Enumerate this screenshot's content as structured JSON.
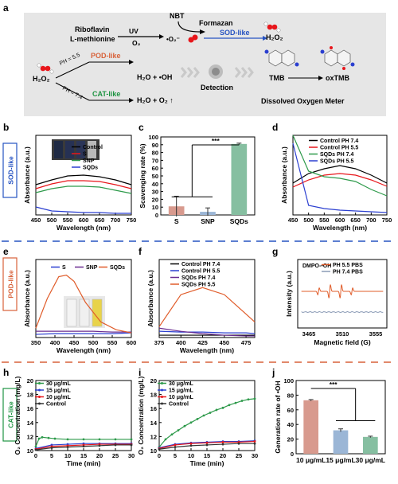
{
  "figure": {
    "panel_labels": [
      "a",
      "b",
      "c",
      "d",
      "e",
      "f",
      "g",
      "h",
      "i",
      "j"
    ],
    "side_labels": {
      "sod": "SOD-like",
      "pod": "POD-like",
      "cat": "CAT-like"
    },
    "colors": {
      "black": "#000000",
      "red": "#e8161b",
      "green": "#2e9a4b",
      "blue": "#2b3fd0",
      "purple": "#6a2c91",
      "orange": "#e05c2a",
      "pink": "#d96b8a",
      "sodBadge": "#2653c2",
      "podBadge": "#d8623a",
      "catBadge": "#1f9443",
      "scheme_bg": "#e6e6e6"
    }
  },
  "scheme": {
    "riboflavin": "Riboflavin",
    "methionine": "L-methionine",
    "uv": "UV",
    "o2": "O₂",
    "nbt": "NBT",
    "formazan": "Formazan",
    "superoxide": "•O₂⁻",
    "sod_like": "SOD-like",
    "h2o2_top": "H₂O₂",
    "h2o2_left": "H₂O₂",
    "ph55": "PH = 5.5",
    "ph74": "PH = 7.4",
    "pod_like": "POD-like",
    "cat_like": "CAT-like",
    "pod_product": "H₂O + •OH",
    "cat_product": "H₂O + O₂ ↑",
    "detection": "Detection",
    "tmb": "TMB",
    "oxtmb": "oxTMB",
    "dissolved": "Dissolved Oxygen Meter"
  },
  "chart_data": [
    {
      "panel": "b",
      "type": "line",
      "xlabel": "Wavelength (nm)",
      "ylabel": "Absorbance (a.u.)",
      "xlim": [
        450,
        750
      ],
      "ylim": [
        0,
        1
      ],
      "xticks": [
        450,
        500,
        550,
        600,
        650,
        700,
        750
      ],
      "yticks": [],
      "series": [
        {
          "name": "Control",
          "color": "#000000",
          "x": [
            450,
            500,
            550,
            600,
            650,
            700,
            750
          ],
          "y": [
            0.38,
            0.44,
            0.49,
            0.5,
            0.48,
            0.44,
            0.38
          ]
        },
        {
          "name": "S",
          "color": "#e8161b",
          "x": [
            450,
            500,
            550,
            600,
            650,
            700,
            750
          ],
          "y": [
            0.33,
            0.39,
            0.43,
            0.43,
            0.42,
            0.38,
            0.33
          ]
        },
        {
          "name": "SNP",
          "color": "#2e9a4b",
          "x": [
            450,
            500,
            550,
            600,
            650,
            700,
            750
          ],
          "y": [
            0.28,
            0.33,
            0.36,
            0.36,
            0.35,
            0.31,
            0.27
          ]
        },
        {
          "name": "SQDs",
          "color": "#2b3fd0",
          "x": [
            450,
            500,
            550,
            600,
            650,
            700,
            750
          ],
          "y": [
            0.1,
            0.05,
            0.04,
            0.03,
            0.03,
            0.02,
            0.02
          ]
        }
      ]
    },
    {
      "panel": "c",
      "type": "bar",
      "xlabel": "",
      "ylabel": "Scavenging rate (%)",
      "ylim": [
        0,
        100
      ],
      "yticks": [
        0,
        10,
        20,
        30,
        40,
        50,
        60,
        70,
        80,
        90,
        100
      ],
      "categories": [
        "S",
        "SNP",
        "SQDs"
      ],
      "values": [
        11,
        4,
        91
      ],
      "errors": [
        13,
        5,
        1
      ],
      "colors": [
        "#d89a8e",
        "#9bb6d6",
        "#86bfa1"
      ],
      "annotation": "***"
    },
    {
      "panel": "d",
      "type": "line",
      "xlabel": "Wavelength (nm)",
      "ylabel": "Absorbance (a.u.)",
      "xlim": [
        450,
        750
      ],
      "ylim": [
        0,
        1
      ],
      "xticks": [
        450,
        500,
        550,
        600,
        650,
        700,
        750
      ],
      "yticks": [],
      "series": [
        {
          "name": "Control PH 7.4",
          "color": "#000000",
          "x": [
            450,
            500,
            550,
            600,
            650,
            700,
            750
          ],
          "y": [
            0.4,
            0.52,
            0.58,
            0.62,
            0.58,
            0.5,
            0.4
          ]
        },
        {
          "name": "Control PH 5.5",
          "color": "#e8161b",
          "x": [
            450,
            500,
            550,
            600,
            650,
            700,
            750
          ],
          "y": [
            0.35,
            0.44,
            0.5,
            0.52,
            0.5,
            0.44,
            0.36
          ]
        },
        {
          "name": "SQDs PH 7.4",
          "color": "#2e9a4b",
          "x": [
            450,
            500,
            550,
            600,
            650,
            700,
            750
          ],
          "y": [
            1.0,
            0.55,
            0.48,
            0.46,
            0.42,
            0.32,
            0.24
          ]
        },
        {
          "name": "SQDs PH 5.5",
          "color": "#2b3fd0",
          "x": [
            450,
            500,
            550,
            600,
            650,
            700,
            750
          ],
          "y": [
            0.9,
            0.12,
            0.08,
            0.06,
            0.05,
            0.04,
            0.03
          ]
        }
      ]
    },
    {
      "panel": "e",
      "type": "line",
      "xlabel": "Wavelength (nm)",
      "ylabel": "Absorbance (a.u.)",
      "xlim": [
        350,
        600
      ],
      "ylim": [
        0,
        1
      ],
      "xticks": [
        350,
        400,
        450,
        500,
        550,
        600
      ],
      "yticks": [],
      "series": [
        {
          "name": "S",
          "color": "#2b3fd0",
          "x": [
            350,
            400,
            450,
            500,
            550,
            600
          ],
          "y": [
            0.04,
            0.05,
            0.05,
            0.05,
            0.05,
            0.06
          ]
        },
        {
          "name": "SNP",
          "color": "#6a2c91",
          "x": [
            350,
            400,
            450,
            500,
            550,
            600
          ],
          "y": [
            0.08,
            0.08,
            0.08,
            0.08,
            0.07,
            0.07
          ]
        },
        {
          "name": "SQDs",
          "color": "#e05c2a",
          "x": [
            350,
            380,
            410,
            430,
            450,
            480,
            520,
            560,
            600
          ],
          "y": [
            0.12,
            0.5,
            0.78,
            0.8,
            0.72,
            0.45,
            0.2,
            0.1,
            0.06
          ]
        }
      ]
    },
    {
      "panel": "f",
      "type": "line",
      "xlabel": "Wavelength (nm)",
      "ylabel": "Absorbance (a.u.)",
      "xlim": [
        375,
        485
      ],
      "ylim": [
        0,
        1
      ],
      "xticks": [
        375,
        400,
        425,
        450,
        475
      ],
      "yticks": [],
      "series": [
        {
          "name": "Control PH 7.4",
          "color": "#000000",
          "x": [
            375,
            400,
            425,
            450,
            475,
            485
          ],
          "y": [
            0.03,
            0.03,
            0.03,
            0.03,
            0.03,
            0.03
          ]
        },
        {
          "name": "Control PH 5.5",
          "color": "#2b3fd0",
          "x": [
            375,
            400,
            425,
            450,
            475,
            485
          ],
          "y": [
            0.08,
            0.07,
            0.07,
            0.06,
            0.06,
            0.05
          ]
        },
        {
          "name": "SQDs PH 7.4",
          "color": "#6a2c91",
          "x": [
            375,
            400,
            425,
            450,
            475,
            485
          ],
          "y": [
            0.12,
            0.08,
            0.05,
            0.03,
            0.02,
            0.02
          ]
        },
        {
          "name": "SQDs PH 5.5",
          "color": "#e05c2a",
          "x": [
            375,
            400,
            425,
            450,
            475,
            485
          ],
          "y": [
            0.14,
            0.55,
            0.64,
            0.55,
            0.3,
            0.2
          ]
        }
      ]
    },
    {
      "panel": "g",
      "type": "line",
      "xlabel": "Magnetic field (G)",
      "ylabel": "Intensity (a.u.)",
      "xticks": [
        3465,
        3510,
        3555
      ],
      "annotation": "DMPO-•OH",
      "series": [
        {
          "name": "PH 5.5 PBS",
          "color": "#e05c2a"
        },
        {
          "name": "PH 7.4 PBS",
          "color": "#8a9ab5"
        }
      ]
    },
    {
      "panel": "h",
      "type": "line",
      "xlabel": "Time (min)",
      "ylabel": "O₂ Concentration (mg/L)",
      "xlim": [
        0,
        30
      ],
      "ylim": [
        10,
        20
      ],
      "xticks": [
        0,
        5,
        10,
        15,
        20,
        25,
        30
      ],
      "yticks": [
        10,
        12,
        14,
        16,
        18,
        20
      ],
      "series": [
        {
          "name": "30 μg/mL",
          "color": "#2e9a4b",
          "x": [
            0,
            1,
            2,
            4,
            6,
            10,
            15,
            20,
            25,
            30
          ],
          "y": [
            10.6,
            11.7,
            11.9,
            11.8,
            11.7,
            11.6,
            11.6,
            11.6,
            11.6,
            11.6
          ]
        },
        {
          "name": "15 μg/mL",
          "color": "#2b3fd0",
          "x": [
            0,
            5,
            10,
            15,
            20,
            25,
            30
          ],
          "y": [
            10.3,
            10.8,
            10.9,
            11.0,
            11.0,
            11.0,
            11.0
          ]
        },
        {
          "name": "10 μg/mL",
          "color": "#e8161b",
          "x": [
            0,
            5,
            10,
            15,
            20,
            25,
            30
          ],
          "y": [
            10.2,
            10.6,
            10.7,
            10.8,
            10.9,
            10.9,
            10.9
          ]
        },
        {
          "name": "Control",
          "color": "#333333",
          "x": [
            0,
            5,
            10,
            15,
            20,
            25,
            30
          ],
          "y": [
            10.1,
            10.4,
            10.5,
            10.6,
            10.7,
            10.8,
            10.8
          ]
        }
      ]
    },
    {
      "panel": "i",
      "type": "line",
      "xlabel": "Time (min)",
      "ylabel": "O₂ Concentration (mg/L)",
      "xlim": [
        0,
        30
      ],
      "ylim": [
        10,
        20
      ],
      "xticks": [
        0,
        5,
        10,
        15,
        20,
        25,
        30
      ],
      "yticks": [
        10,
        12,
        14,
        16,
        18,
        20
      ],
      "series": [
        {
          "name": "30 μg/mL",
          "color": "#2e9a4b",
          "x": [
            0,
            2,
            4,
            6,
            8,
            10,
            12,
            14,
            16,
            18,
            20,
            22,
            24,
            26,
            28,
            30
          ],
          "y": [
            10.5,
            11.6,
            12.3,
            12.9,
            13.5,
            14.0,
            14.5,
            15.0,
            15.4,
            15.8,
            16.1,
            16.5,
            16.8,
            17.1,
            17.3,
            17.4
          ]
        },
        {
          "name": "15 μg/mL",
          "color": "#2b3fd0",
          "x": [
            0,
            5,
            10,
            15,
            20,
            25,
            30
          ],
          "y": [
            10.4,
            10.9,
            11.1,
            11.2,
            11.3,
            11.3,
            11.4
          ]
        },
        {
          "name": "10 μg/mL",
          "color": "#e8161b",
          "x": [
            0,
            5,
            10,
            15,
            20,
            25,
            30
          ],
          "y": [
            10.3,
            10.8,
            11.0,
            11.1,
            11.2,
            11.2,
            11.3
          ]
        },
        {
          "name": "Control",
          "color": "#333333",
          "x": [
            0,
            5,
            10,
            15,
            20,
            25,
            30
          ],
          "y": [
            10.2,
            10.5,
            10.7,
            10.8,
            10.9,
            11.0,
            11.0
          ]
        }
      ]
    },
    {
      "panel": "j",
      "type": "bar",
      "xlabel": "",
      "ylabel": "Generation rate of •OH",
      "ylim": [
        0,
        100
      ],
      "yticks": [
        0,
        20,
        40,
        60,
        80,
        100
      ],
      "categories": [
        "10 μg/mL",
        "15 μg/mL",
        "30 μg/mL"
      ],
      "values": [
        73,
        32,
        23
      ],
      "errors": [
        1,
        2,
        1
      ],
      "colors": [
        "#d89a8e",
        "#9bb6d6",
        "#86bfa1"
      ],
      "annotation": "***"
    }
  ]
}
